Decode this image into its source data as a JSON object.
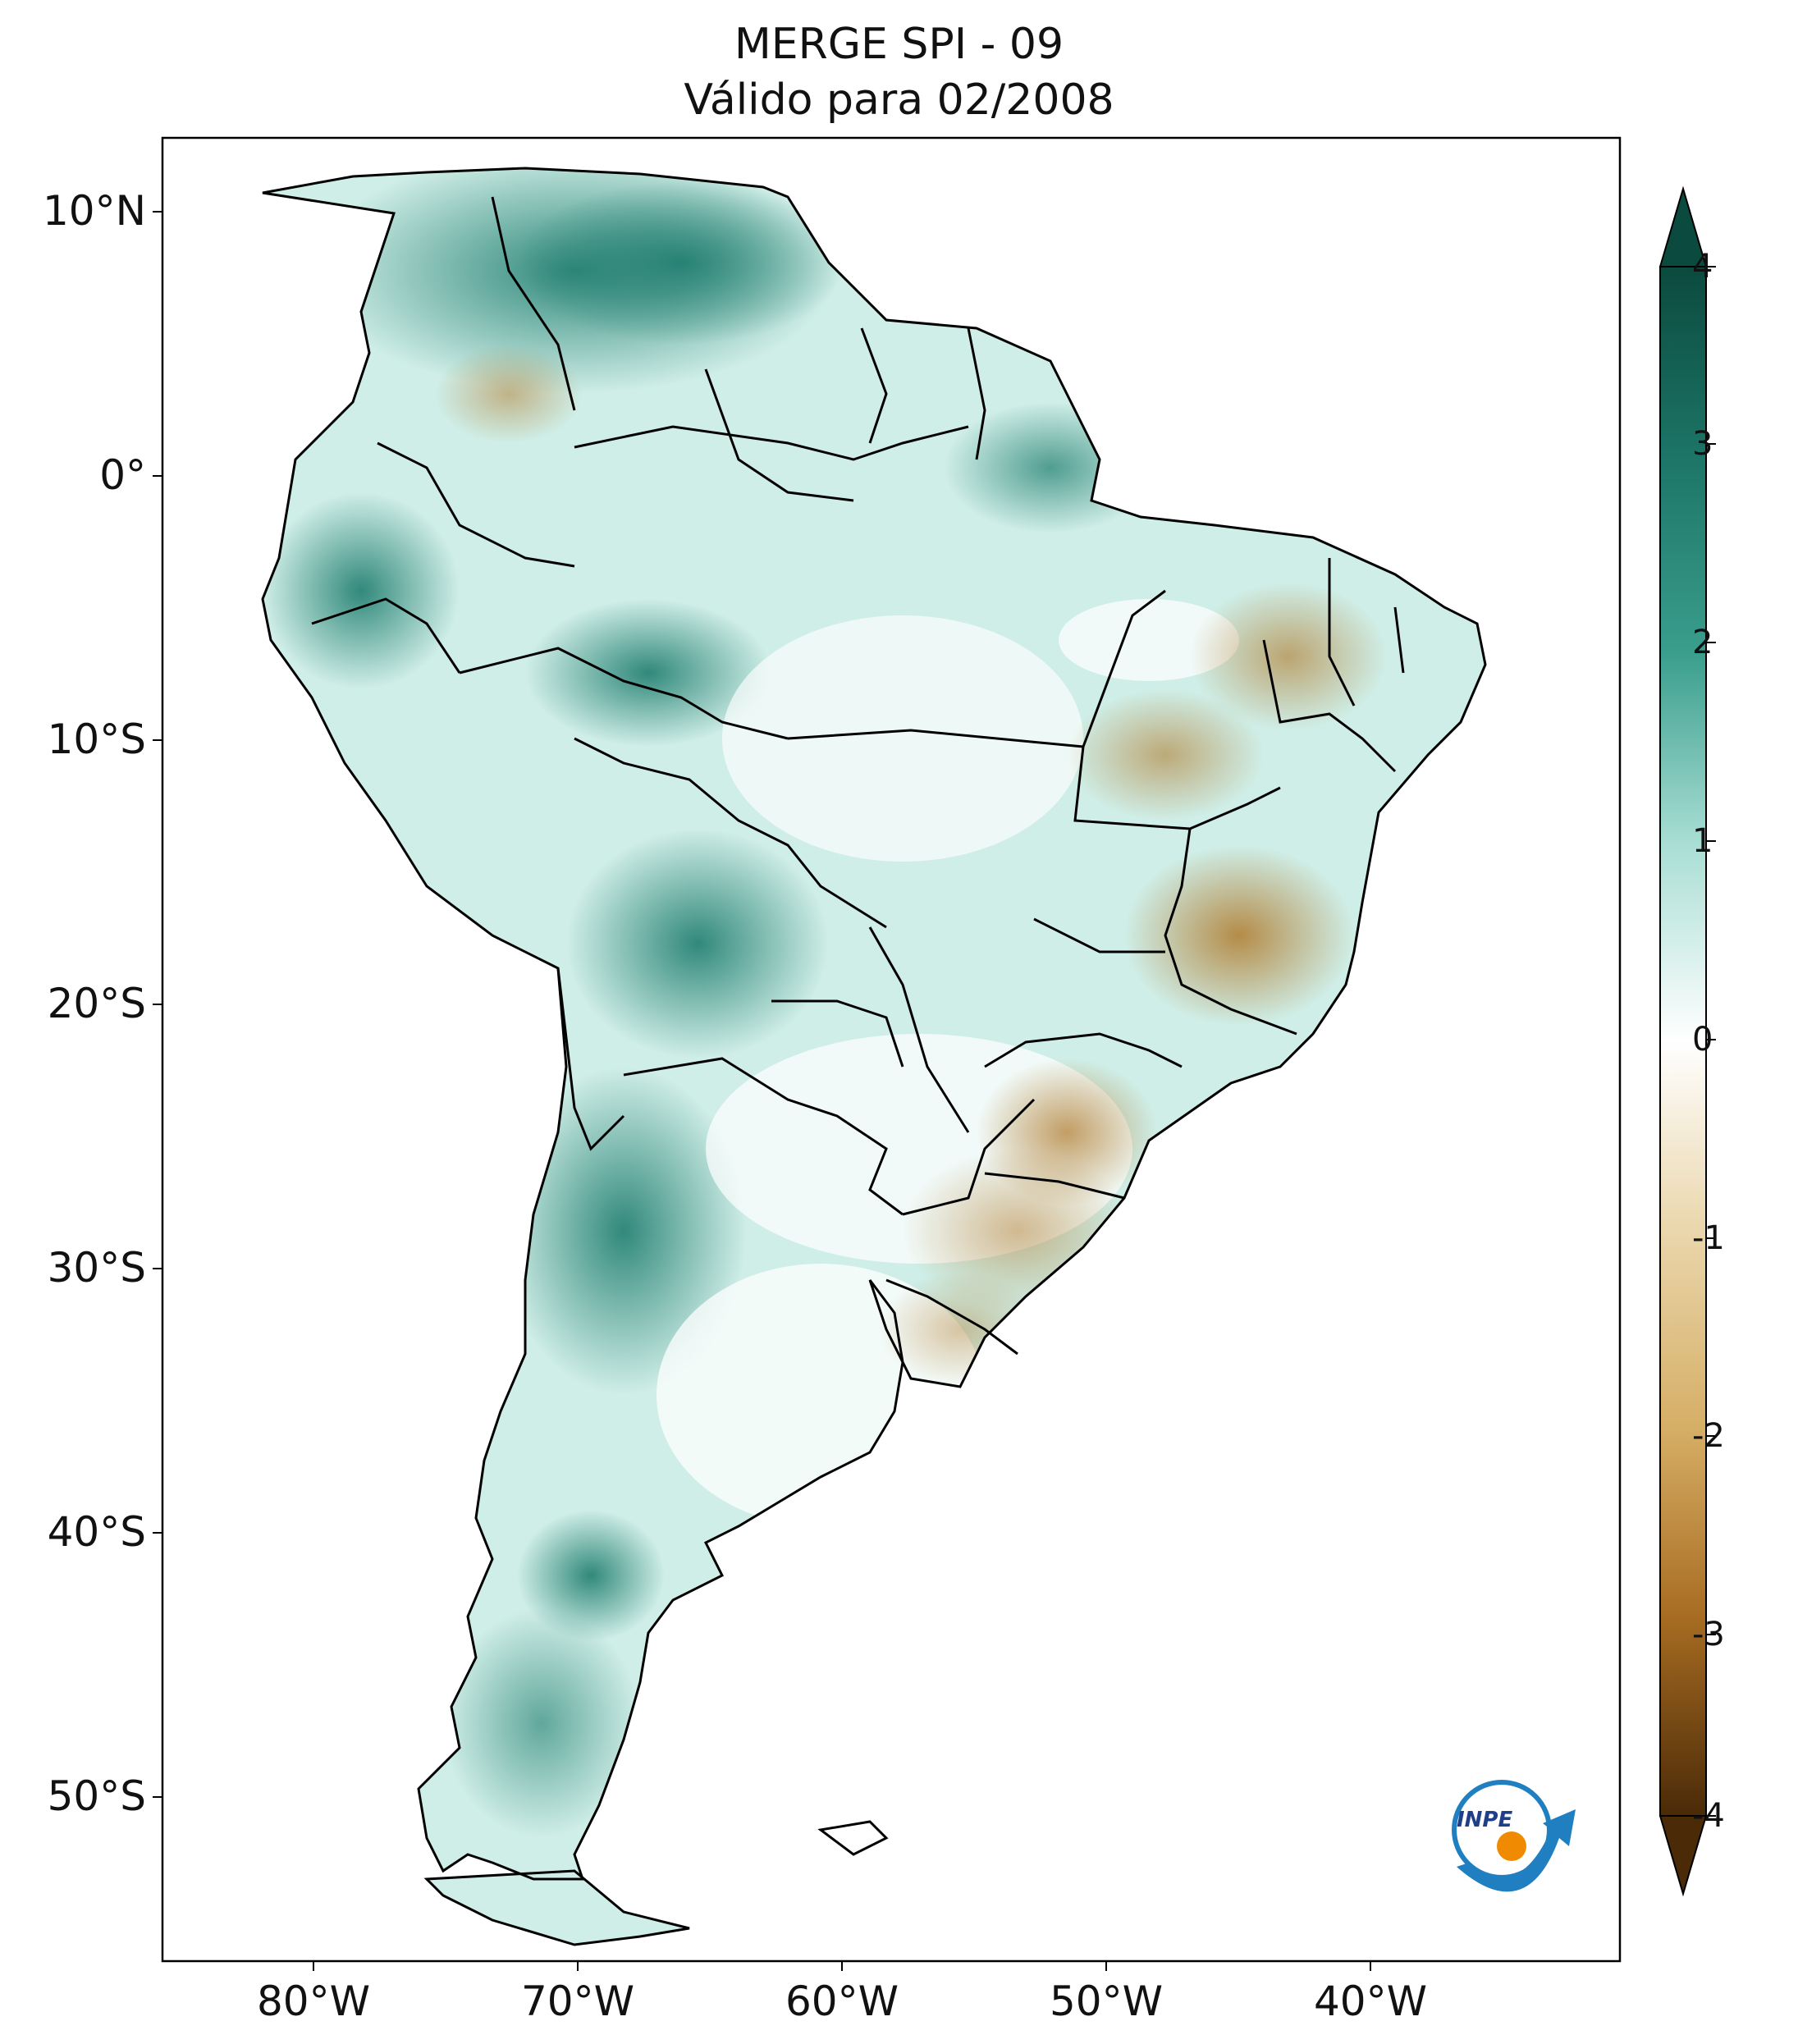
{
  "title_line1": "MERGE   SPI - 09",
  "title_line2": "Válido para 02/2008",
  "lat_labels": [
    "10°N",
    "0°",
    "10°S",
    "20°S",
    "30°S",
    "40°S",
    "50°S"
  ],
  "lon_labels": [
    "80°W",
    "70°W",
    "60°W",
    "50°W",
    "40°W"
  ],
  "colorbar_ticks": [
    "4",
    "3",
    "2",
    "1",
    "0",
    "-1",
    "-2",
    "-3",
    "-4"
  ],
  "logo_text": "INPE",
  "colors": {
    "wet_max": "#0b4a3e",
    "wet_mid": "#3a9e8d",
    "wet_low": "#a7ddd3",
    "neutral": "#ffffff",
    "dry_low": "#ead7ad",
    "dry_mid": "#bf8a3c",
    "dry_max": "#4b2a08",
    "border": "#000000"
  }
}
